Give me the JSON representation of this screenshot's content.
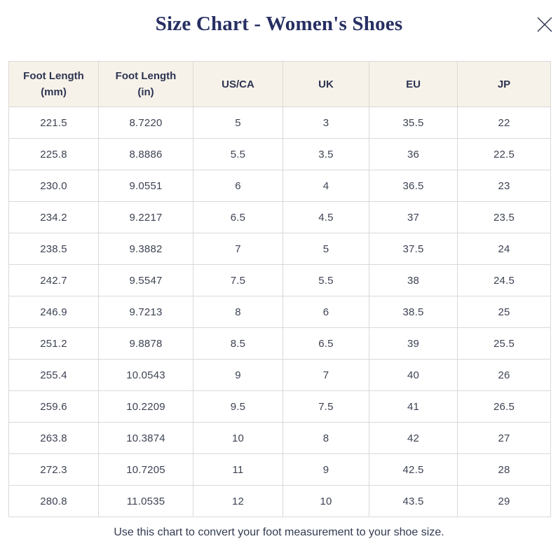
{
  "modal": {
    "title": "Size Chart - Women's Shoes",
    "footer": "Use this chart to convert your foot measurement to your shoe size."
  },
  "table": {
    "headers": [
      {
        "line1": "Foot Length",
        "line2": "(mm)"
      },
      {
        "line1": "Foot Length",
        "line2": "(in)"
      },
      {
        "line1": "US/CA",
        "line2": ""
      },
      {
        "line1": "UK",
        "line2": ""
      },
      {
        "line1": "EU",
        "line2": ""
      },
      {
        "line1": "JP",
        "line2": ""
      }
    ],
    "rows": [
      [
        "221.5",
        "8.7220",
        "5",
        "3",
        "35.5",
        "22"
      ],
      [
        "225.8",
        "8.8886",
        "5.5",
        "3.5",
        "36",
        "22.5"
      ],
      [
        "230.0",
        "9.0551",
        "6",
        "4",
        "36.5",
        "23"
      ],
      [
        "234.2",
        "9.2217",
        "6.5",
        "4.5",
        "37",
        "23.5"
      ],
      [
        "238.5",
        "9.3882",
        "7",
        "5",
        "37.5",
        "24"
      ],
      [
        "242.7",
        "9.5547",
        "7.5",
        "5.5",
        "38",
        "24.5"
      ],
      [
        "246.9",
        "9.7213",
        "8",
        "6",
        "38.5",
        "25"
      ],
      [
        "251.2",
        "9.8878",
        "8.5",
        "6.5",
        "39",
        "25.5"
      ],
      [
        "255.4",
        "10.0543",
        "9",
        "7",
        "40",
        "26"
      ],
      [
        "259.6",
        "10.2209",
        "9.5",
        "7.5",
        "41",
        "26.5"
      ],
      [
        "263.8",
        "10.3874",
        "10",
        "8",
        "42",
        "27"
      ],
      [
        "272.3",
        "10.7205",
        "11",
        "9",
        "42.5",
        "28"
      ],
      [
        "280.8",
        "11.0535",
        "12",
        "10",
        "43.5",
        "29"
      ]
    ]
  },
  "colors": {
    "title": "#272f62",
    "header_bg": "#f7f2e9",
    "border": "#d9d9d9",
    "cell_text": "#3d4353",
    "header_text": "#2d3452",
    "footer_text": "#333b51",
    "close_icon": "#2e3450"
  }
}
